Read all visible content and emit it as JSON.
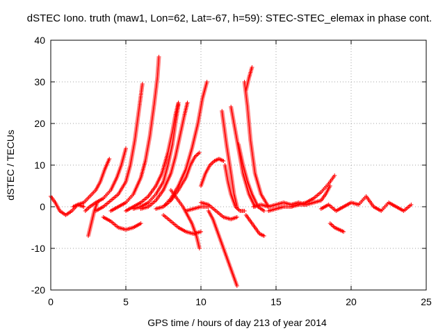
{
  "chart_data": {
    "type": "scatter",
    "title": "dSTEC Iono. truth (maw1, Lon=62, Lat=-67, h=59): STEC-STEC_elemax in phase cont.",
    "xlabel": "GPS time / hours of day 213 of year 2014",
    "ylabel": "dSTEC  / TECUs",
    "xlim": [
      0,
      25
    ],
    "ylim": [
      -20,
      40
    ],
    "xticks": [
      0,
      5,
      10,
      15,
      20,
      25
    ],
    "yticks": [
      -20,
      -10,
      0,
      10,
      20,
      30,
      40
    ],
    "grid": true,
    "marker": "+",
    "color": "#ff0000",
    "series": [
      {
        "x": [
          0.0,
          0.3,
          0.6,
          1.0,
          1.4,
          1.8,
          2.2
        ],
        "y": [
          2.5,
          1.0,
          -1.0,
          -2.0,
          -1.0,
          0.5,
          0.0
        ]
      },
      {
        "x": [
          1.5,
          1.8,
          2.2,
          2.6,
          3.0,
          3.3,
          3.6,
          3.9
        ],
        "y": [
          0.0,
          0.5,
          1.0,
          2.5,
          4.0,
          6.0,
          9.0,
          11.5
        ]
      },
      {
        "x": [
          2.3,
          2.6,
          3.0,
          3.5,
          4.0,
          4.4,
          4.7,
          5.0
        ],
        "y": [
          -1.0,
          0.0,
          1.0,
          2.0,
          4.0,
          7.0,
          10.0,
          14.0
        ]
      },
      {
        "x": [
          2.5,
          2.7,
          2.9,
          3.1
        ],
        "y": [
          -7.0,
          -4.0,
          -1.0,
          1.0
        ]
      },
      {
        "x": [
          3.5,
          4.0,
          4.5,
          5.0,
          5.5,
          6.0
        ],
        "y": [
          -2.5,
          -3.5,
          -5.0,
          -5.5,
          -5.0,
          -4.0
        ]
      },
      {
        "x": [
          3.0,
          3.5,
          4.0,
          4.5,
          5.0,
          5.3,
          5.6,
          5.9,
          6.1
        ],
        "y": [
          -1.0,
          0.0,
          1.5,
          3.0,
          6.0,
          10.0,
          16.0,
          24.0,
          29.5
        ]
      },
      {
        "x": [
          4.0,
          4.5,
          5.0,
          5.5,
          6.0,
          6.3,
          6.6,
          6.9,
          7.1,
          7.2
        ],
        "y": [
          -1.0,
          0.0,
          1.0,
          3.0,
          7.0,
          11.0,
          17.0,
          25.0,
          31.0,
          36.0
        ]
      },
      {
        "x": [
          5.0,
          5.5,
          6.0,
          6.5,
          7.0,
          7.4,
          7.8,
          8.1,
          8.3,
          8.5
        ],
        "y": [
          -1.0,
          0.0,
          1.0,
          2.5,
          5.0,
          8.0,
          13.0,
          18.0,
          22.0,
          25.0
        ]
      },
      {
        "x": [
          5.5,
          6.0,
          6.5,
          7.0,
          7.5,
          7.8,
          8.1,
          8.3,
          8.5
        ],
        "y": [
          -0.5,
          0.0,
          1.0,
          3.0,
          6.0,
          10.0,
          15.0,
          20.0,
          24.5
        ]
      },
      {
        "x": [
          6.0,
          6.5,
          7.0,
          7.5,
          8.0,
          8.3,
          8.6,
          8.9,
          9.1
        ],
        "y": [
          -0.5,
          0.0,
          1.5,
          4.0,
          8.0,
          12.0,
          17.0,
          22.0,
          25.0
        ]
      },
      {
        "x": [
          7.0,
          7.5,
          8.0,
          8.5,
          9.0,
          9.4,
          9.8,
          10.1,
          10.4
        ],
        "y": [
          -0.5,
          0.0,
          2.0,
          5.0,
          9.0,
          14.0,
          20.0,
          26.0,
          30.0
        ]
      },
      {
        "x": [
          7.5,
          8.0,
          8.5,
          9.0,
          9.3,
          9.6,
          9.9
        ],
        "y": [
          0.0,
          1.5,
          4.0,
          7.0,
          10.0,
          12.0,
          13.0
        ]
      },
      {
        "x": [
          8.0,
          8.4,
          8.8,
          9.1,
          9.4,
          9.7,
          9.9
        ],
        "y": [
          4.0,
          2.0,
          0.0,
          -2.0,
          -4.0,
          -7.0,
          -10.0
        ]
      },
      {
        "x": [
          7.5,
          8.0,
          8.5,
          9.0,
          9.5,
          10.0
        ],
        "y": [
          -2.0,
          -3.5,
          -5.0,
          -6.0,
          -6.5,
          -6.0
        ]
      },
      {
        "x": [
          9.0,
          9.5,
          10.0,
          10.5
        ],
        "y": [
          -1.0,
          -0.5,
          0.0,
          0.0
        ]
      },
      {
        "x": [
          10.0,
          10.3,
          10.6,
          10.9,
          11.2,
          11.5
        ],
        "y": [
          5.0,
          8.0,
          10.0,
          11.0,
          11.5,
          11.0
        ]
      },
      {
        "x": [
          10.0,
          10.5,
          11.0,
          11.5,
          12.0,
          12.4
        ],
        "y": [
          1.0,
          0.5,
          -1.0,
          -2.5,
          -3.0,
          -2.5
        ]
      },
      {
        "x": [
          10.5,
          10.8,
          11.1,
          11.4,
          11.7,
          12.0,
          12.2,
          12.4
        ],
        "y": [
          -1.0,
          -3.0,
          -6.0,
          -9.0,
          -12.0,
          -15.0,
          -17.0,
          -19.0
        ]
      },
      {
        "x": [
          11.4,
          11.7,
          12.0,
          12.2,
          12.4
        ],
        "y": [
          23.0,
          15.0,
          8.0,
          3.0,
          0.0
        ]
      },
      {
        "x": [
          11.6,
          11.8,
          12.0,
          12.3,
          12.6,
          12.9
        ],
        "y": [
          10.0,
          6.0,
          3.0,
          0.0,
          -1.0,
          -1.0
        ]
      },
      {
        "x": [
          12.0,
          12.2,
          12.5,
          12.8,
          13.2,
          13.6
        ],
        "y": [
          24.0,
          20.0,
          14.0,
          8.0,
          3.0,
          0.0
        ]
      },
      {
        "x": [
          12.5,
          12.8,
          13.1,
          13.4,
          13.8,
          14.2
        ],
        "y": [
          15.0,
          10.0,
          6.0,
          3.0,
          0.0,
          -1.0
        ]
      },
      {
        "x": [
          12.9,
          13.1,
          13.3,
          13.6,
          14.0,
          14.5
        ],
        "y": [
          30.0,
          24.0,
          16.0,
          8.0,
          3.0,
          0.0
        ]
      },
      {
        "x": [
          13.0,
          13.2,
          13.4
        ],
        "y": [
          28.0,
          31.0,
          33.5
        ]
      },
      {
        "x": [
          13.0,
          13.3,
          13.6,
          13.9,
          14.2
        ],
        "y": [
          -2.0,
          -3.5,
          -5.0,
          -6.5,
          -7.0
        ]
      },
      {
        "x": [
          13.5,
          14.0,
          14.5,
          15.0,
          15.5,
          16.0,
          16.5,
          17.0
        ],
        "y": [
          0.0,
          0.5,
          0.0,
          0.5,
          1.0,
          0.5,
          1.0,
          0.5
        ]
      },
      {
        "x": [
          14.5,
          15.0,
          15.5,
          16.0,
          16.5,
          17.0,
          17.5,
          18.0,
          18.5,
          18.9
        ],
        "y": [
          -1.0,
          -0.5,
          0.0,
          0.0,
          0.5,
          1.0,
          2.0,
          3.5,
          5.5,
          7.5
        ]
      },
      {
        "x": [
          16.0,
          16.5,
          17.0,
          17.5,
          18.0,
          18.3,
          18.6
        ],
        "y": [
          0.0,
          0.5,
          0.5,
          1.0,
          1.5,
          3.0,
          5.0
        ]
      },
      {
        "x": [
          18.0,
          18.5,
          19.0,
          19.5,
          20.0,
          20.5,
          21.0,
          21.5,
          22.0,
          22.5,
          23.0,
          23.5,
          24.0
        ],
        "y": [
          -0.5,
          0.5,
          -1.0,
          0.0,
          1.0,
          0.5,
          2.5,
          0.0,
          -1.0,
          1.0,
          0.0,
          -1.0,
          0.5
        ]
      },
      {
        "x": [
          18.6,
          18.9,
          19.2,
          19.5
        ],
        "y": [
          -4.0,
          -5.0,
          -5.5,
          -6.0
        ]
      }
    ]
  }
}
